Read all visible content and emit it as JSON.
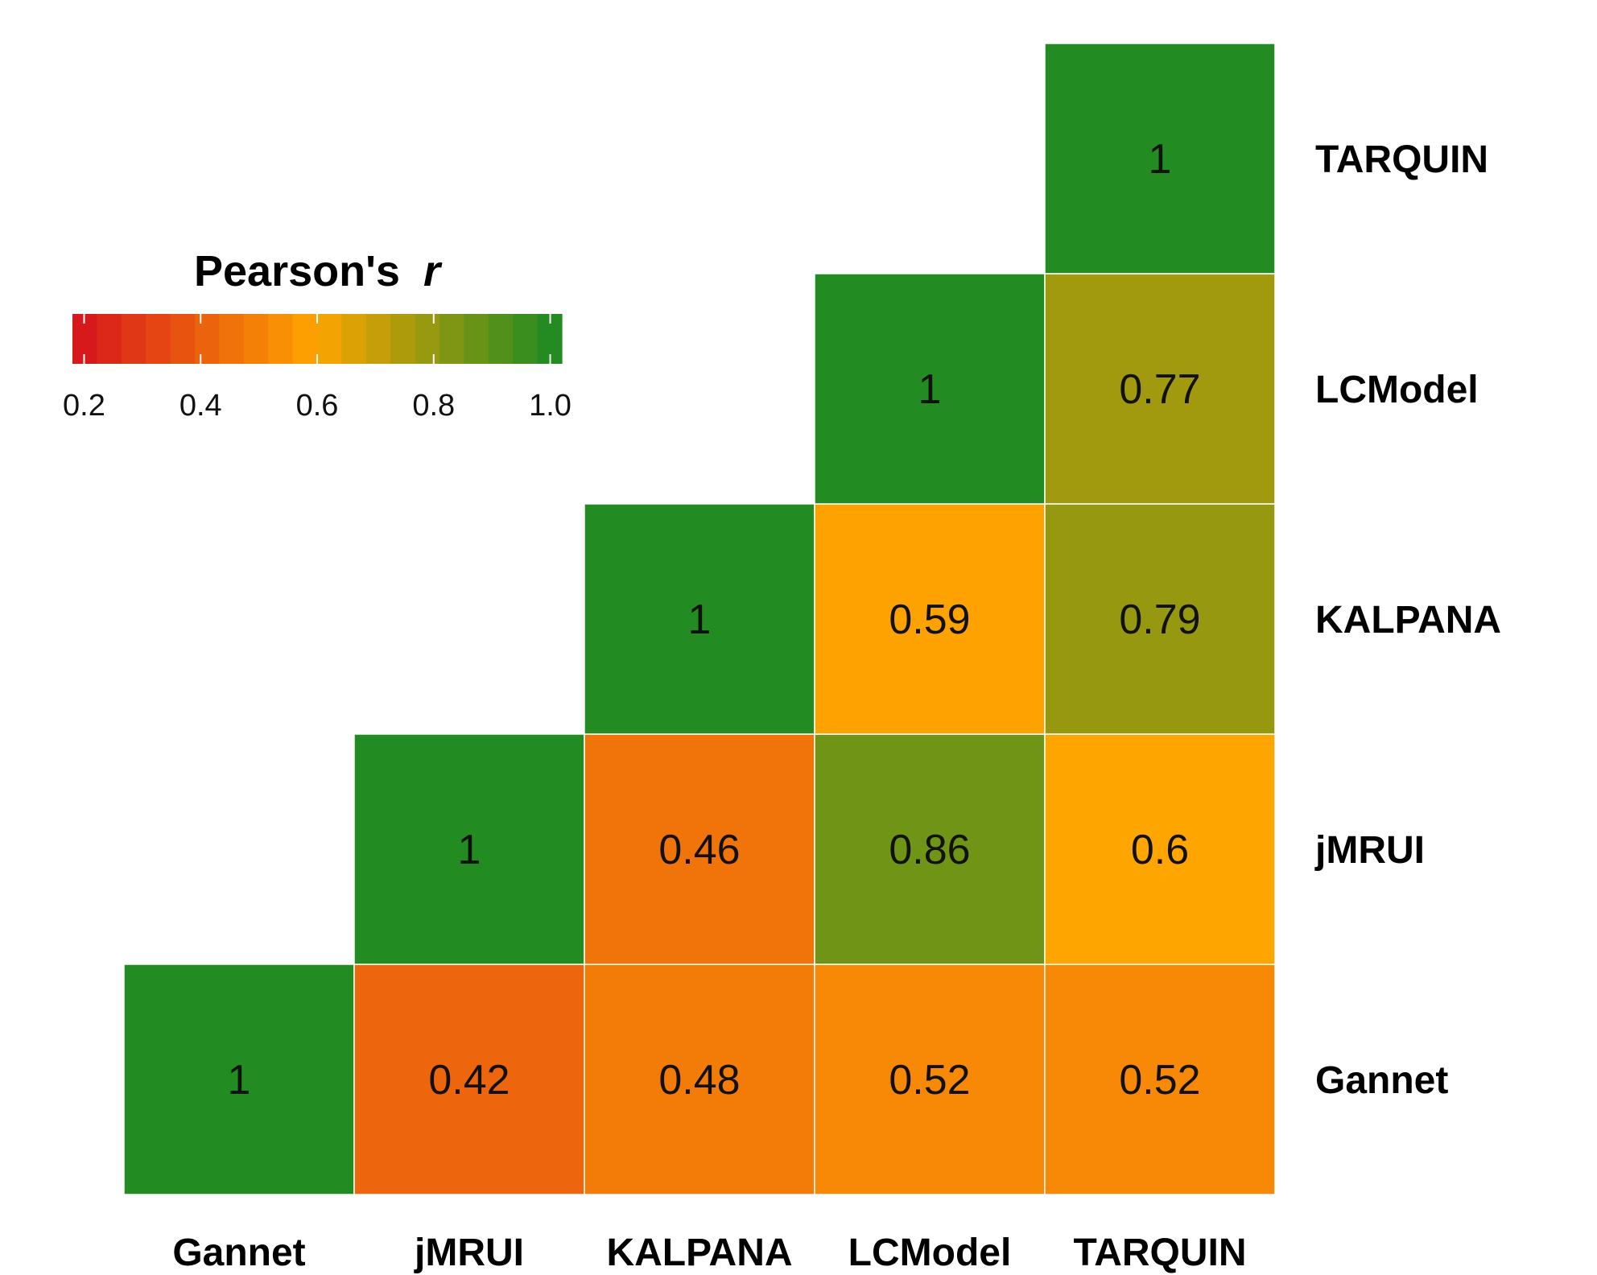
{
  "chart_data": {
    "type": "heatmap",
    "title": "",
    "xlabel": "",
    "ylabel": "",
    "x_categories": [
      "Gannet",
      "jMRUI",
      "KALPANA",
      "LCModel",
      "TARQUIN"
    ],
    "y_categories": [
      "Gannet",
      "jMRUI",
      "KALPANA",
      "LCModel",
      "TARQUIN"
    ],
    "y_axis_position": "right",
    "y_order": "bottom-to-top",
    "cells": [
      {
        "x": "Gannet",
        "y": "Gannet",
        "value": 1,
        "label": "1"
      },
      {
        "x": "jMRUI",
        "y": "Gannet",
        "value": 0.42,
        "label": "0.42"
      },
      {
        "x": "KALPANA",
        "y": "Gannet",
        "value": 0.48,
        "label": "0.48"
      },
      {
        "x": "LCModel",
        "y": "Gannet",
        "value": 0.52,
        "label": "0.52"
      },
      {
        "x": "TARQUIN",
        "y": "Gannet",
        "value": 0.52,
        "label": "0.52"
      },
      {
        "x": "jMRUI",
        "y": "jMRUI",
        "value": 1,
        "label": "1"
      },
      {
        "x": "KALPANA",
        "y": "jMRUI",
        "value": 0.46,
        "label": "0.46"
      },
      {
        "x": "LCModel",
        "y": "jMRUI",
        "value": 0.86,
        "label": "0.86"
      },
      {
        "x": "TARQUIN",
        "y": "jMRUI",
        "value": 0.6,
        "label": "0.6"
      },
      {
        "x": "KALPANA",
        "y": "KALPANA",
        "value": 1,
        "label": "1"
      },
      {
        "x": "LCModel",
        "y": "KALPANA",
        "value": 0.59,
        "label": "0.59"
      },
      {
        "x": "TARQUIN",
        "y": "KALPANA",
        "value": 0.79,
        "label": "0.79"
      },
      {
        "x": "LCModel",
        "y": "LCModel",
        "value": 1,
        "label": "1"
      },
      {
        "x": "TARQUIN",
        "y": "LCModel",
        "value": 0.77,
        "label": "0.77"
      },
      {
        "x": "TARQUIN",
        "y": "TARQUIN",
        "value": 1,
        "label": "1"
      }
    ],
    "legend": {
      "title": "Pearson's",
      "title_italic": "r",
      "position": "top-left",
      "range": [
        0.2,
        1.0
      ],
      "ticks": [
        "0.2",
        "0.4",
        "0.6",
        "0.8",
        "1.0"
      ],
      "tick_values": [
        0.2,
        0.4,
        0.6,
        0.8,
        1.0
      ]
    },
    "color_scale": {
      "stops": [
        {
          "value": 0.2,
          "color": "#d7191c"
        },
        {
          "value": 0.6,
          "color": "#ffa500"
        },
        {
          "value": 1.0,
          "color": "#228b22"
        }
      ]
    },
    "grid": false
  }
}
